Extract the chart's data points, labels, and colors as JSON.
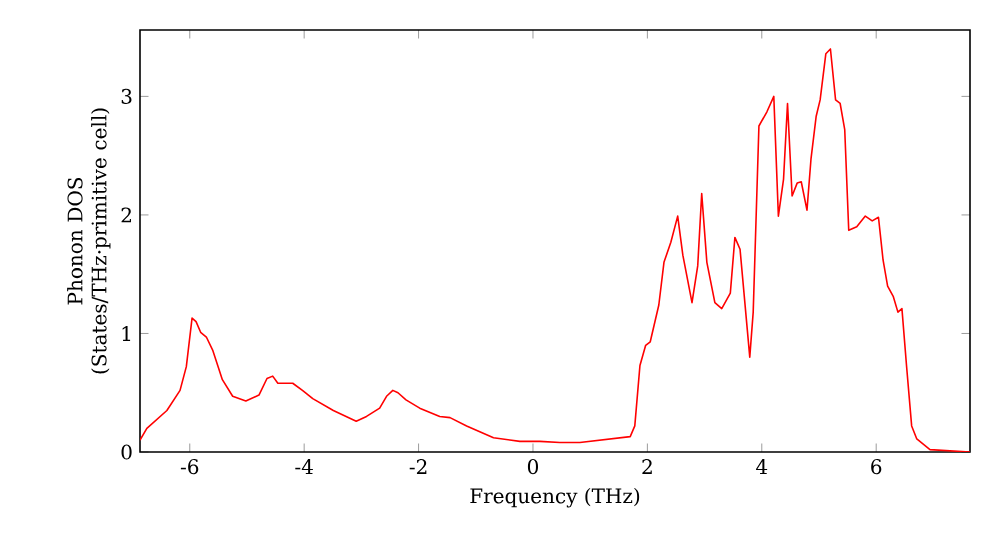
{
  "chart_data": {
    "type": "line",
    "xlabel": "Frequency (THz)",
    "ylabel": "Phonon DOS (States/THz·primitive cell)",
    "xlim": [
      -6.87,
      7.64
    ],
    "ylim": [
      0,
      3.56
    ],
    "xticks": [
      -6,
      -4,
      -2,
      0,
      2,
      4,
      6
    ],
    "yticks": [
      0,
      1,
      2,
      3
    ],
    "grid": false,
    "marker": "none",
    "line_style": "solid",
    "series": [
      {
        "color": "#ff0000",
        "x": [
          -6.87,
          -6.75,
          -6.4,
          -6.17,
          -6.06,
          -5.96,
          -5.89,
          -5.81,
          -5.71,
          -5.6,
          -5.43,
          -5.25,
          -5.02,
          -4.79,
          -4.65,
          -4.55,
          -4.46,
          -4.2,
          -4.03,
          -3.85,
          -3.49,
          -3.09,
          -2.91,
          -2.68,
          -2.56,
          -2.45,
          -2.36,
          -2.22,
          -1.98,
          -1.63,
          -1.45,
          -1.16,
          -0.69,
          -0.23,
          0.12,
          0.47,
          0.82,
          1.7,
          1.78,
          1.87,
          1.97,
          2.05,
          2.2,
          2.29,
          2.41,
          2.53,
          2.62,
          2.78,
          2.88,
          2.95,
          3.04,
          3.18,
          3.3,
          3.45,
          3.53,
          3.62,
          3.79,
          3.85,
          3.95,
          4.09,
          4.21,
          4.29,
          4.38,
          4.45,
          4.53,
          4.62,
          4.69,
          4.79,
          4.86,
          4.95,
          5.02,
          5.12,
          5.2,
          5.29,
          5.37,
          5.45,
          5.52,
          5.66,
          5.81,
          5.93,
          6.04,
          6.12,
          6.2,
          6.3,
          6.38,
          6.45,
          6.53,
          6.62,
          6.71,
          6.94,
          7.64
        ],
        "values": [
          0.1,
          0.2,
          0.35,
          0.52,
          0.72,
          1.13,
          1.1,
          1.01,
          0.97,
          0.86,
          0.61,
          0.47,
          0.43,
          0.48,
          0.62,
          0.64,
          0.58,
          0.58,
          0.52,
          0.45,
          0.35,
          0.26,
          0.3,
          0.37,
          0.47,
          0.52,
          0.5,
          0.44,
          0.37,
          0.3,
          0.29,
          0.22,
          0.12,
          0.09,
          0.09,
          0.08,
          0.08,
          0.13,
          0.22,
          0.73,
          0.9,
          0.93,
          1.24,
          1.6,
          1.77,
          1.99,
          1.66,
          1.26,
          1.57,
          2.18,
          1.6,
          1.26,
          1.21,
          1.34,
          1.81,
          1.71,
          0.8,
          1.18,
          2.75,
          2.87,
          3.0,
          1.99,
          2.3,
          2.94,
          2.16,
          2.27,
          2.28,
          2.04,
          2.47,
          2.83,
          2.97,
          3.36,
          3.4,
          2.97,
          2.94,
          2.72,
          1.87,
          1.9,
          1.99,
          1.95,
          1.98,
          1.62,
          1.4,
          1.31,
          1.18,
          1.21,
          0.73,
          0.22,
          0.11,
          0.02,
          0.0
        ]
      }
    ]
  }
}
